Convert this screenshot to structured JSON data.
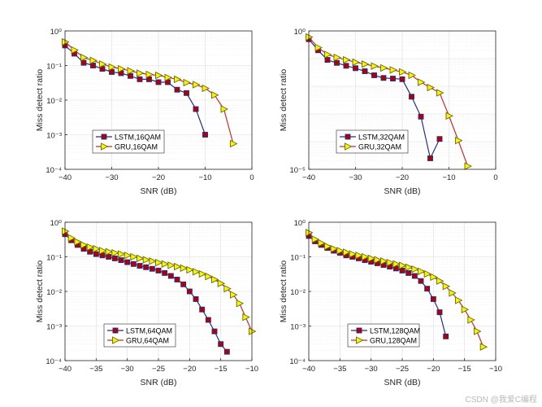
{
  "watermark": "CSDN @我爱C编程",
  "chart_data": [
    {
      "type": "line",
      "xlabel": "SNR (dB)",
      "ylabel": "Miss detect ratio",
      "yscale": "log",
      "xlim": [
        -40,
        0
      ],
      "ylim": [
        0.0001,
        1
      ],
      "xticks": [
        -40,
        -30,
        -20,
        -10,
        0
      ],
      "yticks": [
        0,
        -1,
        -2,
        -3,
        -4
      ],
      "legend_loc": "lower-left",
      "series": [
        {
          "name": "LSTM,16QAM",
          "color": "#1f2f8f",
          "marker": "square",
          "x": [
            -40,
            -38,
            -36,
            -34,
            -32,
            -30,
            -28,
            -26,
            -24,
            -22,
            -20,
            -18,
            -16,
            -14,
            -12,
            -10
          ],
          "y": [
            0.38,
            0.22,
            0.12,
            0.1,
            0.08,
            0.065,
            0.06,
            0.05,
            0.04,
            0.04,
            0.033,
            0.033,
            0.02,
            0.016,
            0.0055,
            0.001
          ]
        },
        {
          "name": "GRU,16QAM",
          "color": "#cc2a2a",
          "marker": "triangle-right",
          "x": [
            -40,
            -38,
            -36,
            -34,
            -32,
            -30,
            -28,
            -26,
            -24,
            -22,
            -20,
            -18,
            -16,
            -14,
            -12,
            -10,
            -8,
            -6,
            -4
          ],
          "y": [
            0.48,
            0.28,
            0.17,
            0.14,
            0.11,
            0.09,
            0.08,
            0.07,
            0.06,
            0.055,
            0.052,
            0.045,
            0.04,
            0.032,
            0.028,
            0.022,
            0.014,
            0.0055,
            0.00055
          ]
        }
      ]
    },
    {
      "type": "line",
      "xlabel": "SNR (dB)",
      "ylabel": "Miss detect ratio",
      "yscale": "log",
      "xlim": [
        -40,
        0
      ],
      "ylim": [
        1e-05,
        1
      ],
      "xticks": [
        -40,
        -30,
        -20,
        -10,
        0
      ],
      "yticks": [
        0,
        -5
      ],
      "legend_loc": "lower-left",
      "series": [
        {
          "name": "LSTM,32QAM",
          "color": "#1f2f8f",
          "marker": "square",
          "x": [
            -40,
            -38,
            -36,
            -34,
            -32,
            -30,
            -28,
            -26,
            -24,
            -22,
            -20,
            -18,
            -16,
            -14,
            -12
          ],
          "y": [
            0.5,
            0.2,
            0.09,
            0.07,
            0.055,
            0.045,
            0.035,
            0.025,
            0.02,
            0.019,
            0.018,
            0.0042,
            0.0008,
            2.5e-05,
            0.000125
          ]
        },
        {
          "name": "GRU,32QAM",
          "color": "#cc2a2a",
          "marker": "triangle-right",
          "x": [
            -40,
            -38,
            -36,
            -34,
            -32,
            -30,
            -28,
            -26,
            -24,
            -22,
            -20,
            -18,
            -16,
            -14,
            -12,
            -10,
            -8,
            -6
          ],
          "y": [
            0.6,
            0.25,
            0.14,
            0.11,
            0.09,
            0.074,
            0.063,
            0.054,
            0.046,
            0.039,
            0.033,
            0.025,
            0.014,
            0.009,
            0.0058,
            0.00085,
            0.00011,
            1.3e-05
          ]
        }
      ]
    },
    {
      "type": "line",
      "xlabel": "SNR (dB)",
      "ylabel": "Miss detect ratio",
      "yscale": "log",
      "xlim": [
        -40,
        -10
      ],
      "ylim": [
        0.0001,
        1
      ],
      "xticks": [
        -40,
        -35,
        -30,
        -25,
        -20,
        -15,
        -10
      ],
      "yticks": [
        0,
        -1,
        -2,
        -3,
        -4
      ],
      "legend_loc": "lower-center",
      "series": [
        {
          "name": "LSTM,64QAM",
          "color": "#1f2f8f",
          "marker": "square",
          "x": [
            -40,
            -39,
            -38,
            -37,
            -36,
            -35,
            -34,
            -33,
            -32,
            -31,
            -30,
            -29,
            -28,
            -27,
            -26,
            -25,
            -24,
            -23,
            -22,
            -21,
            -20,
            -19,
            -18,
            -17,
            -16,
            -15,
            -14
          ],
          "y": [
            0.45,
            0.3,
            0.22,
            0.17,
            0.14,
            0.12,
            0.11,
            0.1,
            0.09,
            0.08,
            0.07,
            0.062,
            0.055,
            0.05,
            0.045,
            0.04,
            0.034,
            0.028,
            0.022,
            0.016,
            0.01,
            0.006,
            0.003,
            0.0015,
            0.0007,
            0.0003,
            0.00018
          ]
        },
        {
          "name": "GRU,64QAM",
          "color": "#cc2a2a",
          "marker": "triangle-right",
          "x": [
            -40,
            -39,
            -38,
            -37,
            -36,
            -35,
            -34,
            -33,
            -32,
            -31,
            -30,
            -29,
            -28,
            -27,
            -26,
            -25,
            -24,
            -23,
            -22,
            -21,
            -20,
            -19,
            -18,
            -17,
            -16,
            -15,
            -14,
            -13,
            -12,
            -11,
            -10
          ],
          "y": [
            0.55,
            0.35,
            0.27,
            0.22,
            0.19,
            0.17,
            0.15,
            0.14,
            0.13,
            0.12,
            0.11,
            0.1,
            0.09,
            0.082,
            0.075,
            0.068,
            0.062,
            0.057,
            0.052,
            0.047,
            0.042,
            0.037,
            0.032,
            0.027,
            0.022,
            0.017,
            0.012,
            0.008,
            0.0045,
            0.0018,
            0.0007
          ]
        }
      ]
    },
    {
      "type": "line",
      "xlabel": "SNR (dB)",
      "ylabel": "Miss detect ratio",
      "yscale": "log",
      "xlim": [
        -40,
        -10
      ],
      "ylim": [
        0.0001,
        1
      ],
      "xticks": [
        -40,
        -35,
        -30,
        -25,
        -20,
        -15,
        -10
      ],
      "yticks": [
        0,
        -1,
        -2,
        -3,
        -4
      ],
      "legend_loc": "lower-center",
      "series": [
        {
          "name": "LSTM,128QAM",
          "color": "#1f2f8f",
          "marker": "square",
          "x": [
            -40,
            -39,
            -38,
            -37,
            -36,
            -35,
            -34,
            -33,
            -32,
            -31,
            -30,
            -29,
            -28,
            -27,
            -26,
            -25,
            -24,
            -23,
            -22,
            -21,
            -20,
            -19,
            -18
          ],
          "y": [
            0.4,
            0.28,
            0.22,
            0.18,
            0.15,
            0.13,
            0.11,
            0.1,
            0.09,
            0.08,
            0.072,
            0.065,
            0.058,
            0.052,
            0.046,
            0.04,
            0.034,
            0.028,
            0.02,
            0.012,
            0.006,
            0.0025,
            0.0005
          ]
        },
        {
          "name": "GRU,128QAM",
          "color": "#cc2a2a",
          "marker": "triangle-right",
          "x": [
            -40,
            -39,
            -38,
            -37,
            -36,
            -35,
            -34,
            -33,
            -32,
            -31,
            -30,
            -29,
            -28,
            -27,
            -26,
            -25,
            -24,
            -23,
            -22,
            -21,
            -20,
            -19,
            -18,
            -17,
            -16,
            -15,
            -14,
            -13,
            -12
          ],
          "y": [
            0.5,
            0.32,
            0.25,
            0.2,
            0.17,
            0.15,
            0.135,
            0.12,
            0.11,
            0.1,
            0.09,
            0.082,
            0.075,
            0.068,
            0.062,
            0.056,
            0.05,
            0.044,
            0.038,
            0.032,
            0.026,
            0.02,
            0.014,
            0.009,
            0.0055,
            0.003,
            0.0015,
            0.0007,
            0.00025
          ]
        }
      ]
    }
  ]
}
